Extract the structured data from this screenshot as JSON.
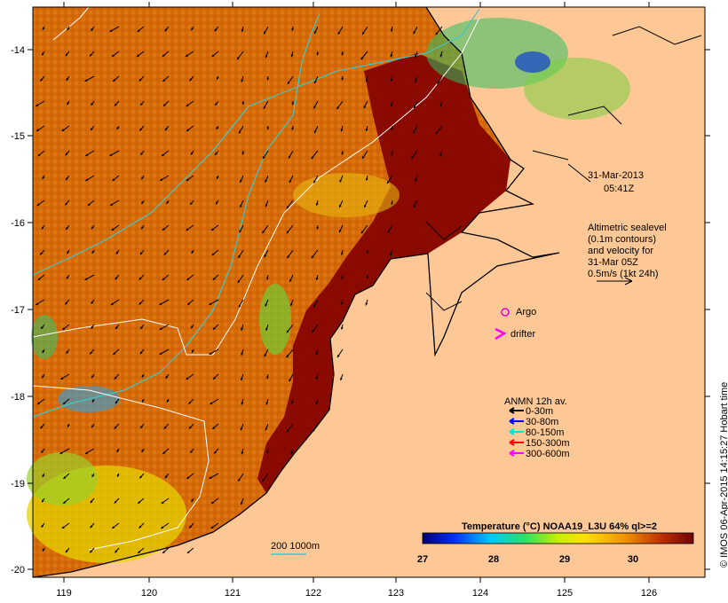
{
  "date_label": "31-Mar-2013",
  "time_label": "05:41Z",
  "altimetry_note": [
    "Altimetric sealevel",
    "(0.1m contours)",
    "and velocity for",
    "31-Mar 05Z",
    "0.5m/s (1kt 24h)"
  ],
  "markers": {
    "argo_label": "Argo",
    "drifter_label": "drifter"
  },
  "anmn": {
    "title": "ANMN 12h av.",
    "items": [
      {
        "label": "0-30m",
        "color": "#000000"
      },
      {
        "label": "30-80m",
        "color": "#0000ff"
      },
      {
        "label": "80-150m",
        "color": "#00e0e0"
      },
      {
        "label": "150-300m",
        "color": "#ff0000"
      },
      {
        "label": "300-600m",
        "color": "#ff00ff"
      }
    ]
  },
  "isobath_label": "200  1000m",
  "colorbar": {
    "title": "Temperature (°C) NOAA19_L3U 64% ql>=2",
    "ticks": [
      "27",
      "28",
      "29",
      "30"
    ]
  },
  "credit": "© IMOS 06-Apr-2015 14:15:27 Hobart time",
  "axes": {
    "x_ticks": [
      "119",
      "120",
      "121",
      "122",
      "123",
      "124",
      "125",
      "126"
    ],
    "y_ticks": [
      "-14",
      "-15",
      "-16",
      "-17",
      "-18",
      "-19",
      "-20"
    ]
  },
  "colors": {
    "land": "#fdc896",
    "coast_warm": "#8b0a00",
    "sea_mid": "#d46a08",
    "cool_patch": "#e6d400"
  }
}
